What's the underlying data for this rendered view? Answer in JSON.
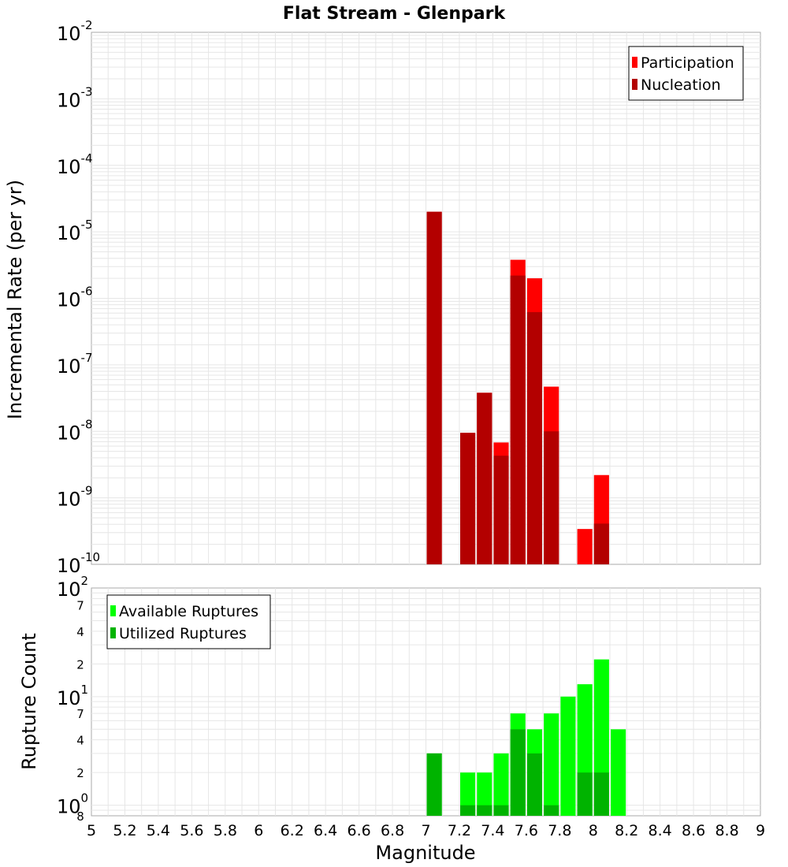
{
  "chart_data": [
    {
      "type": "bar",
      "title": "Flat Stream - Glenpark",
      "xlabel": "Magnitude",
      "ylabel": "Incremental Rate (per yr)",
      "yscale": "log",
      "ylim": [
        1e-10,
        0.01
      ],
      "xlim": [
        5,
        9
      ],
      "x_ticks": [
        "5",
        "5.2",
        "5.4",
        "5.6",
        "5.8",
        "6",
        "6.2",
        "6.4",
        "6.6",
        "6.8",
        "7",
        "7.2",
        "7.4",
        "7.6",
        "7.8",
        "8",
        "8.2",
        "8.4",
        "8.6",
        "8.8",
        "9"
      ],
      "y_tick_exponents": [
        "-10",
        "-9",
        "-8",
        "-7",
        "-6",
        "-5",
        "-4",
        "-3",
        "-2"
      ],
      "y_tick_base": "10",
      "legend_position": "top-right",
      "x": [
        7.05,
        7.25,
        7.35,
        7.45,
        7.55,
        7.65,
        7.75,
        7.95,
        8.05
      ],
      "series": [
        {
          "name": "Participation",
          "color": "#ff0000",
          "values": [
            2e-05,
            9.5e-09,
            3.8e-08,
            6.8e-09,
            3.8e-06,
            2e-06,
            4.7e-08,
            3.4e-10,
            2.2e-09
          ]
        },
        {
          "name": "Nucleation",
          "color": "#b30000",
          "values": [
            2e-05,
            9.5e-09,
            3.8e-08,
            4.3e-09,
            2.2e-06,
            6.2e-07,
            1e-08,
            0,
            4.1e-10
          ]
        }
      ]
    },
    {
      "type": "bar",
      "xlabel": "Magnitude",
      "ylabel": "Rupture Count",
      "yscale": "log",
      "ylim": [
        0.8,
        100
      ],
      "xlim": [
        5,
        9
      ],
      "y_tick_base": "10",
      "y_decade_ticks": [
        {
          "value": 1,
          "exp": "0"
        },
        {
          "value": 10,
          "exp": "1"
        },
        {
          "value": 100,
          "exp": "2"
        }
      ],
      "y_minor_ticks": [
        {
          "value": 0.8,
          "label": "8"
        },
        {
          "value": 2,
          "label": "2"
        },
        {
          "value": 4,
          "label": "4"
        },
        {
          "value": 7,
          "label": "7"
        },
        {
          "value": 20,
          "label": "2"
        },
        {
          "value": 40,
          "label": "4"
        },
        {
          "value": 70,
          "label": "7"
        }
      ],
      "legend_position": "top-left",
      "x": [
        7.05,
        7.25,
        7.35,
        7.45,
        7.55,
        7.65,
        7.75,
        7.85,
        7.95,
        8.05,
        8.15
      ],
      "series": [
        {
          "name": "Available Ruptures",
          "color": "#00ff00",
          "values": [
            3,
            2,
            2,
            3,
            7,
            5,
            7,
            10,
            13,
            22,
            5
          ]
        },
        {
          "name": "Utilized Ruptures",
          "color": "#00b300",
          "values": [
            3,
            1,
            1,
            1,
            5,
            3,
            1,
            0,
            2,
            2,
            0
          ]
        }
      ]
    }
  ]
}
